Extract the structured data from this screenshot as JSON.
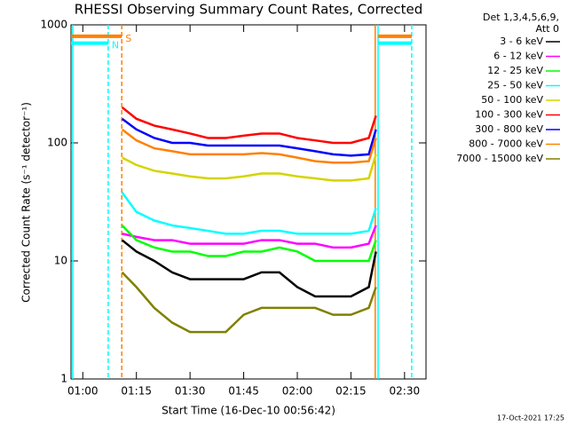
{
  "chart_data": {
    "type": "line",
    "title": "RHESSI Observing Summary Count Rates, Corrected",
    "x_label": "Start Time (16-Dec-10 00:56:42)",
    "y_label": "Corrected Count Rate (s⁻¹ detector⁻¹)",
    "legend_title": [
      "Det 1,3,4,5,6,9,",
      "Att 0"
    ],
    "footer": "17-Oct-2021 17:25",
    "log_y": true,
    "legend_position": "right",
    "xlim": [
      56.7,
      156
    ],
    "xticks": [
      {
        "value": 60,
        "label": "01:00"
      },
      {
        "value": 75,
        "label": "01:15"
      },
      {
        "value": 90,
        "label": "01:30"
      },
      {
        "value": 105,
        "label": "01:45"
      },
      {
        "value": 120,
        "label": "02:00"
      },
      {
        "value": 135,
        "label": "02:15"
      },
      {
        "value": 150,
        "label": "02:30"
      }
    ],
    "ylim": [
      1,
      1000
    ],
    "yticks": [
      1,
      10,
      100,
      1000
    ],
    "x": [
      71,
      75,
      80,
      85,
      90,
      95,
      100,
      105,
      110,
      115,
      120,
      125,
      130,
      135,
      140,
      142
    ],
    "series": [
      {
        "name": "3 - 6 keV",
        "color": "#000000",
        "values": [
          15,
          12,
          10,
          8,
          7,
          7,
          7,
          7,
          8,
          8,
          6,
          5,
          5,
          5,
          6,
          12
        ]
      },
      {
        "name": "6 - 12 keV",
        "color": "#ff00ff",
        "values": [
          17,
          16,
          15,
          15,
          14,
          14,
          14,
          14,
          15,
          15,
          14,
          14,
          13,
          13,
          14,
          20
        ]
      },
      {
        "name": "12 - 25 keV",
        "color": "#00ff00",
        "values": [
          20,
          15,
          13,
          12,
          12,
          11,
          11,
          12,
          12,
          13,
          12,
          10,
          10,
          10,
          10,
          15
        ]
      },
      {
        "name": "25 - 50 keV",
        "color": "#00ffff",
        "values": [
          38,
          26,
          22,
          20,
          19,
          18,
          17,
          17,
          18,
          18,
          17,
          17,
          17,
          17,
          18,
          28
        ]
      },
      {
        "name": "50 - 100 keV",
        "color": "#d4d400",
        "values": [
          75,
          65,
          58,
          55,
          52,
          50,
          50,
          52,
          55,
          55,
          52,
          50,
          48,
          48,
          50,
          80
        ]
      },
      {
        "name": "100 - 300 keV",
        "color": "#ff0000",
        "values": [
          200,
          160,
          140,
          130,
          120,
          110,
          110,
          115,
          120,
          120,
          110,
          105,
          100,
          100,
          110,
          170
        ]
      },
      {
        "name": "300 - 800 keV",
        "color": "#0000ff",
        "values": [
          160,
          130,
          110,
          100,
          100,
          95,
          95,
          95,
          95,
          95,
          90,
          85,
          80,
          78,
          80,
          130
        ]
      },
      {
        "name": "800 - 7000 keV",
        "color": "#ff8000",
        "values": [
          130,
          105,
          90,
          85,
          80,
          80,
          80,
          80,
          82,
          80,
          75,
          70,
          68,
          68,
          70,
          110
        ]
      },
      {
        "name": "7000 - 15000 keV",
        "color": "#808000",
        "values": [
          8,
          6,
          4,
          3,
          2.5,
          2.5,
          2.5,
          3.5,
          4,
          4,
          4,
          4,
          3.5,
          3.5,
          4,
          6
        ]
      }
    ],
    "flags": [
      {
        "label": "S",
        "color": "#ff8000",
        "value": 800,
        "x": [
          56.7,
          70.9,
          142.6,
          152
        ]
      },
      {
        "label": "N",
        "color": "#00ffff",
        "value": 700,
        "x": [
          56.7,
          67.1,
          142.6,
          152
        ]
      }
    ],
    "vlines": [
      {
        "x": 57.2,
        "color": "#00ffff",
        "dashed": false
      },
      {
        "x": 67.1,
        "color": "#00ffff",
        "dashed": true
      },
      {
        "x": 70.9,
        "color": "#ff8000",
        "dashed": true
      },
      {
        "x": 141.8,
        "color": "#ff8000",
        "dashed": false
      },
      {
        "x": 142.6,
        "color": "#00ffff",
        "dashed": false
      },
      {
        "x": 152,
        "color": "#00ffff",
        "dashed": true
      }
    ]
  }
}
